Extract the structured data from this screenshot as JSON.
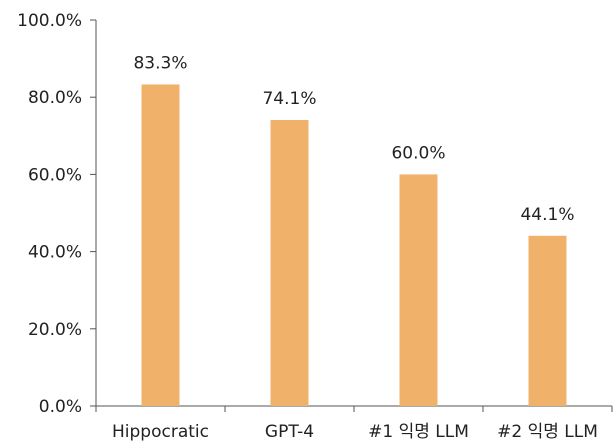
{
  "chart_data": {
    "type": "bar",
    "title": "",
    "xlabel": "",
    "ylabel": "",
    "categories": [
      "Hippocratic",
      "GPT-4",
      "#1 익명 LLM",
      "#2 익명 LLM"
    ],
    "values": [
      83.3,
      74.1,
      60.0,
      44.1
    ],
    "value_labels": [
      "83.3%",
      "74.1%",
      "60.0%",
      "44.1%"
    ],
    "ylim": [
      0,
      100
    ],
    "yticks": [
      0,
      20,
      40,
      60,
      80,
      100
    ],
    "ytick_labels": [
      "0.0%",
      "20.0%",
      "40.0%",
      "60.0%",
      "80.0%",
      "100.0%"
    ],
    "grid": false,
    "legend": "none",
    "colors": {
      "bar": "#F0B26B",
      "axis": "#555555",
      "text": "#222222"
    }
  }
}
